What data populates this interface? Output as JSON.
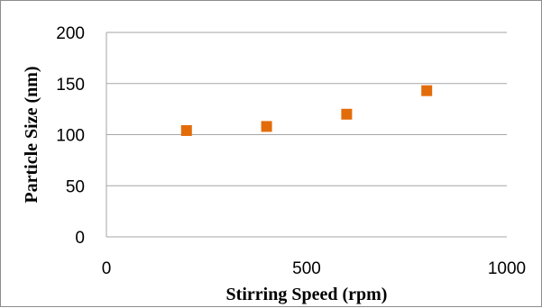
{
  "chart_data": {
    "type": "scatter",
    "xlabel": "Stirring  Speed (rpm)",
    "ylabel": "Particle Size (nm)",
    "xlim": [
      0,
      1000
    ],
    "ylim": [
      0,
      200
    ],
    "x_ticks": [
      0,
      500,
      1000
    ],
    "y_ticks": [
      0,
      50,
      100,
      150,
      200
    ],
    "grid": "horizontal",
    "legend": "none",
    "series": [
      {
        "x": [
          200,
          400,
          600,
          800
        ],
        "y": [
          104,
          108,
          120,
          143
        ],
        "color": "#e36c0a",
        "marker": "square"
      }
    ]
  }
}
